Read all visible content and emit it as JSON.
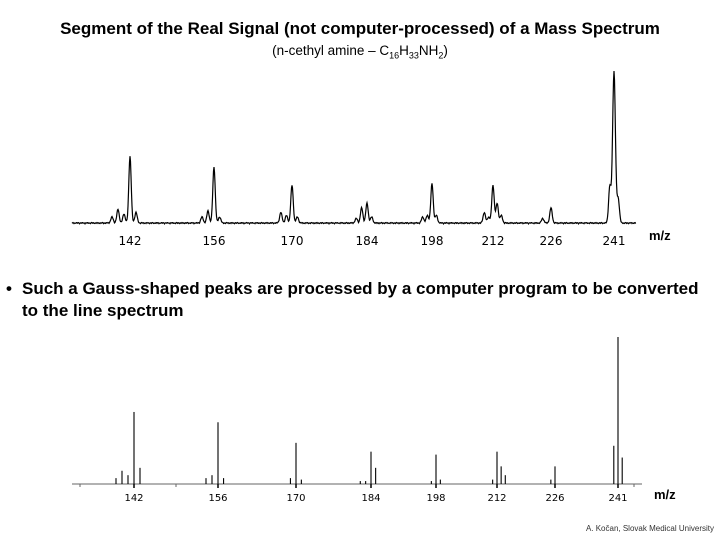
{
  "slide": {
    "title": "Segment of the Real Signal (not computer-processed) of a Mass Spectrum",
    "subtitle_prefix": "(n-cethyl amine – C",
    "subtitle_sub1": "16",
    "subtitle_mid": "H",
    "subtitle_sub2": "33",
    "subtitle_mid2": "NH",
    "subtitle_sub3": "2",
    "subtitle_suffix": ")",
    "bullet_symbol": "•",
    "bullet": "Such a Gauss-shaped peaks are processed by a computer program to be converted to the line spectrum",
    "credit": "A. Kočan, Slovak Medical University"
  },
  "chart_data": [
    {
      "type": "line",
      "name": "raw-signal",
      "xlabel": "m/z",
      "ylabel": "",
      "xlim": [
        133,
        249
      ],
      "ylim": [
        0,
        100
      ],
      "xticks": [
        142,
        156,
        170,
        184,
        198,
        212,
        226,
        241
      ],
      "peaks": [
        {
          "x": 139,
          "y": 4
        },
        {
          "x": 140,
          "y": 9
        },
        {
          "x": 141,
          "y": 6
        },
        {
          "x": 142,
          "y": 44
        },
        {
          "x": 143,
          "y": 7
        },
        {
          "x": 154,
          "y": 4
        },
        {
          "x": 155,
          "y": 8
        },
        {
          "x": 156,
          "y": 37
        },
        {
          "x": 157,
          "y": 4
        },
        {
          "x": 168,
          "y": 7
        },
        {
          "x": 169,
          "y": 5
        },
        {
          "x": 170,
          "y": 25
        },
        {
          "x": 171,
          "y": 4
        },
        {
          "x": 182,
          "y": 3
        },
        {
          "x": 183,
          "y": 10
        },
        {
          "x": 184,
          "y": 13
        },
        {
          "x": 185,
          "y": 4
        },
        {
          "x": 196,
          "y": 4
        },
        {
          "x": 197,
          "y": 5
        },
        {
          "x": 198,
          "y": 26
        },
        {
          "x": 199,
          "y": 5
        },
        {
          "x": 210,
          "y": 7
        },
        {
          "x": 211,
          "y": 4
        },
        {
          "x": 212,
          "y": 25
        },
        {
          "x": 213,
          "y": 13
        },
        {
          "x": 214,
          "y": 5
        },
        {
          "x": 224,
          "y": 3
        },
        {
          "x": 226,
          "y": 10
        },
        {
          "x": 240,
          "y": 24
        },
        {
          "x": 241,
          "y": 100
        },
        {
          "x": 242,
          "y": 16
        }
      ]
    },
    {
      "type": "bar",
      "name": "line-spectrum",
      "xlabel": "m/z",
      "ylabel": "",
      "xlim": [
        133,
        249
      ],
      "ylim": [
        0,
        100
      ],
      "xticks": [
        142,
        156,
        170,
        184,
        198,
        212,
        226,
        241
      ],
      "lines": [
        {
          "x": 139,
          "y": 4
        },
        {
          "x": 140,
          "y": 9
        },
        {
          "x": 141,
          "y": 6
        },
        {
          "x": 142,
          "y": 49
        },
        {
          "x": 143,
          "y": 11
        },
        {
          "x": 154,
          "y": 4
        },
        {
          "x": 155,
          "y": 6
        },
        {
          "x": 156,
          "y": 42
        },
        {
          "x": 157,
          "y": 4
        },
        {
          "x": 169,
          "y": 4
        },
        {
          "x": 170,
          "y": 28
        },
        {
          "x": 171,
          "y": 3
        },
        {
          "x": 182,
          "y": 2
        },
        {
          "x": 183,
          "y": 2
        },
        {
          "x": 184,
          "y": 22
        },
        {
          "x": 185,
          "y": 11
        },
        {
          "x": 197,
          "y": 2
        },
        {
          "x": 198,
          "y": 20
        },
        {
          "x": 199,
          "y": 3
        },
        {
          "x": 211,
          "y": 3
        },
        {
          "x": 212,
          "y": 22
        },
        {
          "x": 213,
          "y": 12
        },
        {
          "x": 214,
          "y": 6
        },
        {
          "x": 225,
          "y": 3
        },
        {
          "x": 226,
          "y": 12
        },
        {
          "x": 240,
          "y": 26
        },
        {
          "x": 241,
          "y": 100
        },
        {
          "x": 242,
          "y": 18
        }
      ]
    }
  ]
}
